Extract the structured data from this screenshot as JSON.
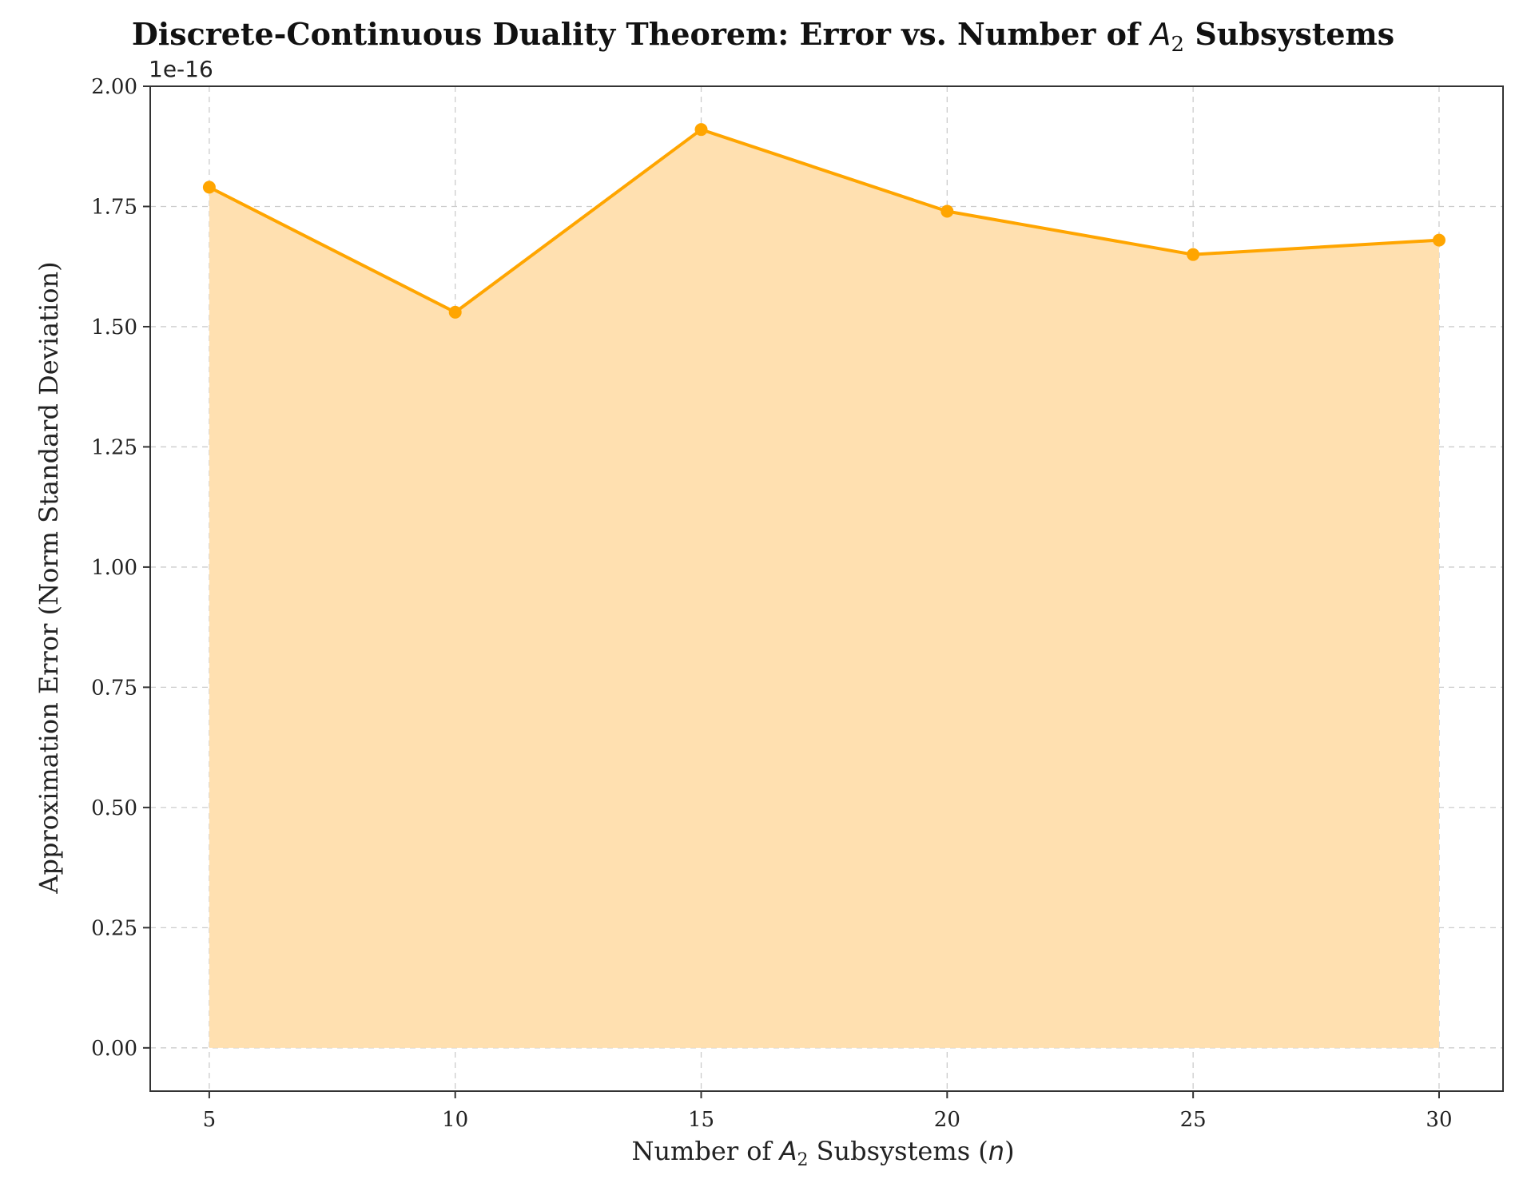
{
  "chart_data": {
    "type": "area",
    "title": {
      "prefix": "Discrete-Continuous Duality Theorem: Error vs. Number of ",
      "symbol": "A",
      "subscript": "2",
      "suffix": " Subsystems"
    },
    "xlabel": {
      "prefix": "Number of ",
      "symbol": "A",
      "subscript": "2",
      "middle": " Subsystems (",
      "variable": "n",
      "suffix": ")"
    },
    "ylabel": "Approximation Error (Norm Standard Deviation)",
    "y_offset_label": "1e-16",
    "x": [
      5,
      10,
      15,
      20,
      25,
      30
    ],
    "series": [
      {
        "values": [
          1.79,
          1.53,
          1.91,
          1.74,
          1.65,
          1.68
        ]
      }
    ],
    "x_ticks": [
      "5",
      "10",
      "15",
      "20",
      "25",
      "30"
    ],
    "y_ticks": [
      "0.00",
      "0.25",
      "0.50",
      "0.75",
      "1.00",
      "1.25",
      "1.50",
      "1.75",
      "2.00"
    ],
    "xlim": [
      3.8,
      31.3
    ],
    "ylim": [
      -0.09,
      2.0
    ],
    "grid": true,
    "line_color": "#FFA500",
    "fill_color": "#FFE0B0"
  }
}
